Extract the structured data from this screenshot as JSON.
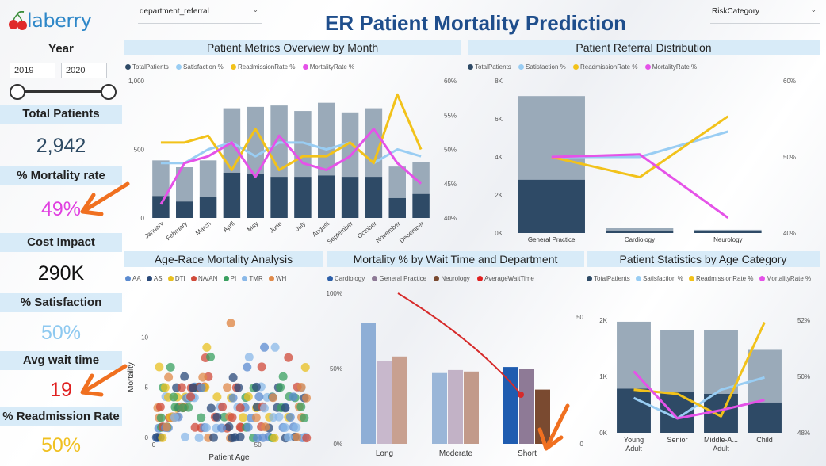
{
  "app": {
    "logo_text": "laberry",
    "title": "ER Patient Mortality Prediction",
    "filter_left": "department_referral",
    "filter_right": "RiskCategory"
  },
  "sidebar": {
    "year_label": "Year",
    "year_from": "2019",
    "year_to": "2020",
    "kpis": [
      {
        "label": "Total Patients",
        "value": "2,942",
        "color": "#2d4a63"
      },
      {
        "label": "% Mortality rate",
        "value": "49%",
        "color": "#e040e0"
      },
      {
        "label": "Cost Impact",
        "value": "290K",
        "color": "#111111"
      },
      {
        "label": "% Satisfaction",
        "value": "50%",
        "color": "#8ec9f0"
      },
      {
        "label": "Avg wait time",
        "value": "19",
        "color": "#e02020"
      },
      {
        "label": "% Readmission Rate",
        "value": "50%",
        "color": "#f0c020"
      }
    ]
  },
  "colors": {
    "total": "#2e4a66",
    "total_light": "#9aaab9",
    "satisfaction": "#99cdf3",
    "readmission": "#f2c21a",
    "mortality": "#e552e8",
    "arrow": "#f07020"
  },
  "legends": {
    "metrics": [
      "TotalPatients",
      "Satisfaction %",
      "ReadmissionRate %",
      "MortalityRate %"
    ],
    "race": [
      "AA",
      "AS",
      "DTI",
      "NA/AN",
      "PI",
      "TMR",
      "WH"
    ],
    "wait": [
      "Cardiology",
      "General Practice",
      "Neurology",
      "AverageWaitTime"
    ]
  },
  "panels": {
    "monthly": {
      "title": "Patient Metrics Overview by Month",
      "y_ticks": [
        "1,000",
        "500",
        "0"
      ],
      "y2_ticks": [
        "60%",
        "55%",
        "50%",
        "45%",
        "40%"
      ]
    },
    "referral": {
      "title": "Patient Referral Distribution",
      "y_ticks": [
        "8K",
        "6K",
        "4K",
        "2K",
        "0K"
      ],
      "y2_ticks": [
        "60%",
        "50%",
        "40%"
      ]
    },
    "age_race": {
      "title": "Age-Race Mortality Analysis",
      "y_label": "Mortality",
      "x_label": "Patient Age",
      "y_ticks": [
        "10",
        "5",
        "0"
      ],
      "x_ticks": [
        "0",
        "50"
      ]
    },
    "wait": {
      "title": "Mortality % by Wait Time and Department",
      "y_ticks": [
        "100%",
        "50%",
        "0%"
      ],
      "y2_ticks": [
        "50",
        "0"
      ]
    },
    "age_cat": {
      "title": "Patient Statistics by Age Category",
      "y_ticks": [
        "2K",
        "1K",
        "0K"
      ],
      "y2_ticks": [
        "52%",
        "50%",
        "48%"
      ]
    }
  },
  "chart_data": [
    {
      "type": "bar",
      "title": "Patient Metrics Overview by Month",
      "categories": [
        "January",
        "February",
        "March",
        "April",
        "May",
        "June",
        "July",
        "August",
        "September",
        "October",
        "November",
        "December"
      ],
      "ylim": [
        0,
        1000
      ],
      "y2lim": [
        40,
        60
      ],
      "series": [
        {
          "name": "TotalPatients",
          "type": "stacked-bar",
          "values_dark": [
            160,
            120,
            155,
            330,
            320,
            300,
            300,
            310,
            300,
            300,
            145,
            175
          ],
          "values_light": [
            260,
            250,
            265,
            470,
            490,
            520,
            480,
            530,
            470,
            500,
            230,
            235
          ]
        },
        {
          "name": "Satisfaction %",
          "type": "line",
          "values": [
            48,
            48,
            50,
            51,
            49,
            51,
            51,
            50,
            51,
            48,
            50,
            49
          ]
        },
        {
          "name": "ReadmissionRate %",
          "type": "line",
          "values": [
            51,
            51,
            52,
            47,
            53,
            47,
            49,
            49,
            51,
            48,
            58,
            50
          ]
        },
        {
          "name": "MortalityRate %",
          "type": "line",
          "values": [
            42,
            48,
            49,
            51,
            46,
            52,
            48,
            47,
            49,
            53,
            48,
            45
          ]
        }
      ]
    },
    {
      "type": "bar",
      "title": "Patient Referral Distribution",
      "categories": [
        "General Practice",
        "Cardiology",
        "Neurology"
      ],
      "ylim": [
        0,
        8000
      ],
      "y2lim": [
        35,
        65
      ],
      "series": [
        {
          "name": "TotalPatients",
          "type": "stacked-bar",
          "values_dark": [
            2800,
            130,
            90
          ],
          "values_light": [
            4400,
            120,
            80
          ]
        },
        {
          "name": "Satisfaction %",
          "type": "line",
          "values": [
            50,
            50,
            55
          ]
        },
        {
          "name": "ReadmissionRate %",
          "type": "line",
          "values": [
            50,
            46,
            58
          ]
        },
        {
          "name": "MortalityRate %",
          "type": "line",
          "values": [
            50,
            50.5,
            38
          ]
        }
      ]
    },
    {
      "type": "scatter",
      "title": "Age-Race Mortality Analysis",
      "xlabel": "Patient Age",
      "ylabel": "Mortality",
      "xlim": [
        0,
        80
      ],
      "ylim": [
        0,
        12
      ]
    },
    {
      "type": "bar",
      "title": "Mortality % by Wait Time and Department",
      "categories": [
        "Long",
        "Moderate",
        "Short"
      ],
      "ylim": [
        0,
        100
      ],
      "series": [
        {
          "name": "Cardiology",
          "values": [
            80,
            47,
            51
          ]
        },
        {
          "name": "General Practice",
          "values": [
            55,
            49,
            50
          ]
        },
        {
          "name": "Neurology",
          "values": [
            58,
            48,
            36
          ]
        },
        {
          "name": "AverageWaitTime",
          "type": "line",
          "values": [
            50,
            30,
            15
          ]
        }
      ]
    },
    {
      "type": "bar",
      "title": "Patient Statistics by Age Category",
      "categories": [
        "Young Adult",
        "Senior",
        "Middle-A... Adult",
        "Child"
      ],
      "ylim": [
        0,
        2200
      ],
      "y2lim": [
        47.5,
        53
      ],
      "series": [
        {
          "name": "TotalPatients",
          "type": "stacked-bar",
          "values_dark": [
            860,
            790,
            760,
            590
          ],
          "values_light": [
            1310,
            1220,
            1250,
            1030
          ]
        },
        {
          "name": "Satisfaction %",
          "type": "line",
          "values": [
            49.2,
            48.2,
            49.6,
            50.2
          ]
        },
        {
          "name": "ReadmissionRate %",
          "type": "line",
          "values": [
            49.6,
            49.4,
            48.3,
            52.9
          ]
        },
        {
          "name": "MortalityRate %",
          "type": "line",
          "values": [
            50.5,
            48.2,
            48.6,
            49.1
          ]
        }
      ]
    }
  ]
}
